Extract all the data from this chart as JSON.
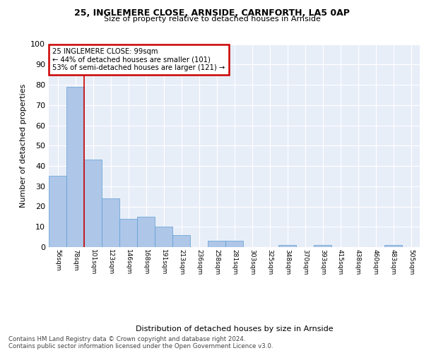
{
  "title1": "25, INGLEMERE CLOSE, ARNSIDE, CARNFORTH, LA5 0AP",
  "title2": "Size of property relative to detached houses in Arnside",
  "xlabel": "Distribution of detached houses by size in Arnside",
  "ylabel": "Number of detached properties",
  "bins": [
    "56sqm",
    "78sqm",
    "101sqm",
    "123sqm",
    "146sqm",
    "168sqm",
    "191sqm",
    "213sqm",
    "236sqm",
    "258sqm",
    "281sqm",
    "303sqm",
    "325sqm",
    "348sqm",
    "370sqm",
    "393sqm",
    "415sqm",
    "438sqm",
    "460sqm",
    "483sqm",
    "505sqm"
  ],
  "values": [
    35,
    79,
    43,
    24,
    14,
    15,
    10,
    6,
    0,
    3,
    3,
    0,
    0,
    1,
    0,
    1,
    0,
    0,
    0,
    1,
    0
  ],
  "bar_color": "#aec6e8",
  "bar_edge_color": "#5a9fd4",
  "vline_color": "#cc0000",
  "annotation_text": "25 INGLEMERE CLOSE: 99sqm\n← 44% of detached houses are smaller (101)\n53% of semi-detached houses are larger (121) →",
  "annotation_box_color": "white",
  "annotation_box_edge_color": "#cc0000",
  "footer": "Contains HM Land Registry data © Crown copyright and database right 2024.\nContains public sector information licensed under the Open Government Licence v3.0.",
  "background_color": "#e8eef8",
  "ylim": [
    0,
    100
  ],
  "yticks": [
    0,
    10,
    20,
    30,
    40,
    50,
    60,
    70,
    80,
    90,
    100
  ]
}
